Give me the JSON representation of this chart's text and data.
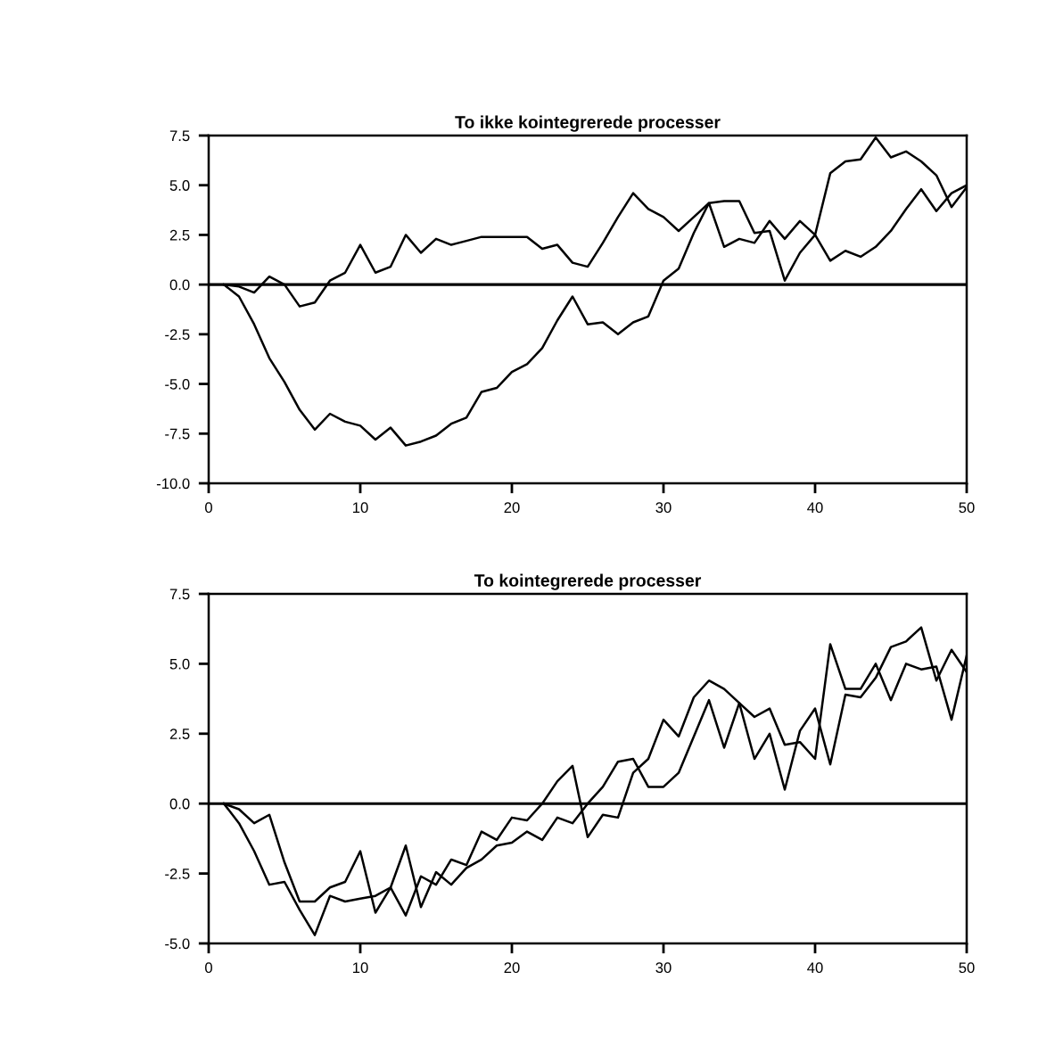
{
  "chart_data": [
    {
      "type": "line",
      "title": "To ikke kointegrerede processer",
      "x": [
        1,
        2,
        3,
        4,
        5,
        6,
        7,
        8,
        9,
        10,
        11,
        12,
        13,
        14,
        15,
        16,
        17,
        18,
        19,
        20,
        21,
        22,
        23,
        24,
        25,
        26,
        27,
        28,
        29,
        30,
        31,
        32,
        33,
        34,
        35,
        36,
        37,
        38,
        39,
        40,
        41,
        42,
        43,
        44,
        45,
        46,
        47,
        48,
        49,
        50
      ],
      "series": [
        {
          "color": "#000000",
          "values": [
            0,
            -0.1,
            -0.4,
            0.4,
            0.0,
            -1.1,
            -0.9,
            0.2,
            0.6,
            2.0,
            0.6,
            0.9,
            2.5,
            1.6,
            2.3,
            2.0,
            2.2,
            2.4,
            2.4,
            2.4,
            2.4,
            1.8,
            2.0,
            1.1,
            0.9,
            2.1,
            3.4,
            4.6,
            3.8,
            3.4,
            2.7,
            3.4,
            4.1,
            1.9,
            2.3,
            2.1,
            3.2,
            2.3,
            3.2,
            2.5,
            1.2,
            1.7,
            1.4,
            1.9,
            2.7,
            3.8,
            4.8,
            3.7,
            4.6,
            5.0
          ]
        },
        {
          "color": "#000000",
          "values": [
            0,
            -0.6,
            -2.0,
            -3.7,
            -4.9,
            -6.3,
            -7.3,
            -6.5,
            -6.9,
            -7.1,
            -7.8,
            -7.2,
            -8.1,
            -7.9,
            -7.6,
            -7.0,
            -6.7,
            -5.4,
            -5.2,
            -4.4,
            -4.0,
            -3.2,
            -1.8,
            -0.6,
            -2.0,
            -1.9,
            -2.5,
            -1.9,
            -1.6,
            0.2,
            0.8,
            2.6,
            4.1,
            4.2,
            4.2,
            2.6,
            2.7,
            0.2,
            1.6,
            2.5,
            5.6,
            6.2,
            6.3,
            7.4,
            6.4,
            6.7,
            6.2,
            5.5,
            3.9,
            4.9
          ]
        }
      ],
      "xlim": [
        0,
        50
      ],
      "xticks": [
        0,
        10,
        20,
        30,
        40,
        50
      ],
      "ylim": [
        -10,
        7.5
      ],
      "yticks": [
        {
          "value": -10,
          "label": "-10.0"
        },
        {
          "value": -7.5,
          "label": "-7.5"
        },
        {
          "value": -5,
          "label": "-5.0"
        },
        {
          "value": -2.5,
          "label": "-2.5"
        },
        {
          "value": 0,
          "label": "0.0"
        },
        {
          "value": 2.5,
          "label": "2.5"
        },
        {
          "value": 5,
          "label": "5.0"
        },
        {
          "value": 7.5,
          "label": "7.5"
        }
      ],
      "ref_lines": [
        {
          "axis": "y",
          "value": 0,
          "color": "#000000"
        }
      ],
      "marker": "none",
      "line_style": "solid"
    },
    {
      "type": "line",
      "title": "To kointegrerede processer",
      "x": [
        1,
        2,
        3,
        4,
        5,
        6,
        7,
        8,
        9,
        10,
        11,
        12,
        13,
        14,
        15,
        16,
        17,
        18,
        19,
        20,
        21,
        22,
        23,
        24,
        25,
        26,
        27,
        28,
        29,
        30,
        31,
        32,
        33,
        34,
        35,
        36,
        37,
        38,
        39,
        40,
        41,
        42,
        43,
        44,
        45,
        46,
        47,
        48,
        49,
        50
      ],
      "series": [
        {
          "color": "#000000",
          "values": [
            0,
            -0.2,
            -0.7,
            -0.4,
            -2.1,
            -3.5,
            -3.5,
            -3.0,
            -2.8,
            -1.7,
            -3.9,
            -3.0,
            -1.5,
            -3.7,
            -2.45,
            -2.9,
            -2.3,
            -2.0,
            -1.5,
            -1.4,
            -1.0,
            -1.3,
            -0.5,
            -0.7,
            0.0,
            0.6,
            1.5,
            1.6,
            0.6,
            0.6,
            1.1,
            2.4,
            3.7,
            2.0,
            3.6,
            3.1,
            3.4,
            2.1,
            2.2,
            1.6,
            5.7,
            4.1,
            4.1,
            5.0,
            3.7,
            5.0,
            4.8,
            4.9,
            3.0,
            5.3
          ]
        },
        {
          "color": "#000000",
          "values": [
            0,
            -0.7,
            -1.7,
            -2.9,
            -2.8,
            -3.8,
            -4.7,
            -3.3,
            -3.5,
            -3.4,
            -3.3,
            -3.0,
            -4.0,
            -2.6,
            -2.9,
            -2.0,
            -2.2,
            -1.0,
            -1.3,
            -0.5,
            -0.6,
            0.0,
            0.8,
            1.35,
            -1.2,
            -0.4,
            -0.5,
            1.1,
            1.6,
            3.0,
            2.4,
            3.8,
            4.4,
            4.1,
            3.6,
            1.6,
            2.5,
            0.5,
            2.6,
            3.4,
            1.4,
            3.9,
            3.8,
            4.5,
            5.6,
            5.8,
            6.3,
            4.4,
            5.5,
            4.7
          ]
        }
      ],
      "xlim": [
        0,
        50
      ],
      "xticks": [
        0,
        10,
        20,
        30,
        40,
        50
      ],
      "ylim": [
        -5,
        7.5
      ],
      "yticks": [
        {
          "value": -5,
          "label": "-5.0"
        },
        {
          "value": -2.5,
          "label": "-2.5"
        },
        {
          "value": 0,
          "label": "0.0"
        },
        {
          "value": 2.5,
          "label": "2.5"
        },
        {
          "value": 5,
          "label": "5.0"
        },
        {
          "value": 7.5,
          "label": "7.5"
        }
      ],
      "ref_lines": [
        {
          "axis": "y",
          "value": 0,
          "color": "#000000"
        }
      ],
      "marker": "none",
      "line_style": "solid"
    }
  ]
}
